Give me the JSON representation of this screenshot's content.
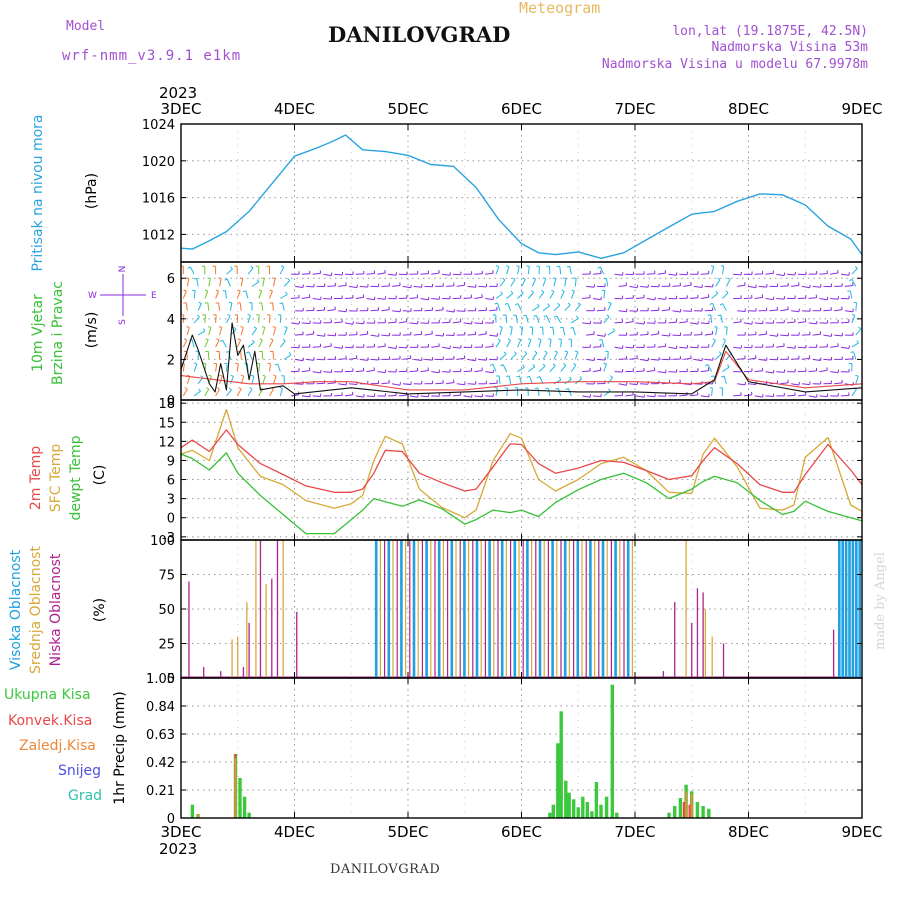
{
  "header": {
    "model_label": "Model",
    "model_name": "wrf-nmm_v3.9.1 e1km",
    "location_title": "DANILOVGRAD",
    "product": "Meteogram",
    "coords": "lon,lat (19.1875E, 42.5N)",
    "elevation": "Nadmorska Visina 53m",
    "model_elevation": "Nadmorska Visina u modelu 67.9978m",
    "watermark": "made by Angel",
    "footer_title": "DANILOVGRAD"
  },
  "time_axis": {
    "year": "2023",
    "labels": [
      "3DEC",
      "4DEC",
      "5DEC",
      "6DEC",
      "7DEC",
      "8DEC",
      "9DEC"
    ],
    "days": [
      0,
      1,
      2,
      3,
      4,
      5,
      6
    ]
  },
  "colors": {
    "pressure": "#29a3e0",
    "temp2m": "#e84848",
    "sfc_temp": "#d8a838",
    "dewpt": "#38c038",
    "high_cloud": "#1fa0e0",
    "mid_cloud": "#d8a838",
    "low_cloud": "#b0208e",
    "wind_line": "#111111",
    "wind_gust": "#e84848",
    "barb_purple": "#8a2be2",
    "barb_cyan": "#20b8e0",
    "barb_green": "#70c830",
    "barb_orange": "#f07830",
    "total_precip": "#3cc83c",
    "conv_precip": "#e84848",
    "frozen_precip": "#f08838",
    "snow": "#5050e0",
    "graupel": "#30c0b0"
  },
  "chart_data": [
    {
      "type": "line",
      "id": "pressure",
      "ylabel": "(hPa)",
      "side_labels": [
        "Pritisak na nivou mora"
      ],
      "ylim": [
        1009,
        1024
      ],
      "yticks": [
        1012,
        1016,
        1020,
        1024
      ],
      "grid": true,
      "series": [
        {
          "x": [
            0,
            0.1,
            0.25,
            0.4,
            0.6,
            0.8,
            1.0,
            1.2,
            1.35,
            1.45,
            1.6,
            1.8,
            2.0,
            2.2,
            2.4,
            2.6,
            2.8,
            3.0,
            3.15,
            3.3,
            3.5,
            3.7,
            3.9,
            4.1,
            4.3,
            4.5,
            4.7,
            4.9,
            5.1,
            5.3,
            5.5,
            5.7,
            5.9,
            6.0
          ],
          "y": [
            1010.5,
            1010.4,
            1011.3,
            1012.3,
            1014.5,
            1017.5,
            1020.5,
            1021.4,
            1022.2,
            1022.8,
            1021.2,
            1021,
            1020.6,
            1019.6,
            1019.4,
            1017.1,
            1013.6,
            1011,
            1010.0,
            1009.8,
            1010.1,
            1009.4,
            1010.0,
            1011.4,
            1012.8,
            1014.2,
            1014.5,
            1015.6,
            1016.4,
            1016.3,
            1015.2,
            1012.9,
            1011.5,
            1009.8
          ]
        }
      ]
    },
    {
      "type": "line",
      "id": "wind",
      "ylabel": "(m/s)",
      "side_labels": [
        "10m Vjetar",
        "Brzina i Pravac"
      ],
      "compass": {
        "n": "N",
        "s": "S",
        "e": "E",
        "w": "W"
      },
      "ylim": [
        0,
        6.8
      ],
      "yticks": [
        0,
        2,
        4,
        6
      ],
      "grid": true,
      "series": [
        {
          "name": "speed",
          "x": [
            0,
            0.1,
            0.15,
            0.25,
            0.3,
            0.35,
            0.4,
            0.45,
            0.5,
            0.55,
            0.6,
            0.65,
            0.7,
            0.8,
            0.9,
            1.0,
            1.5,
            2.0,
            2.5,
            3.0,
            3.5,
            4.0,
            4.5,
            4.7,
            4.8,
            5.0,
            5.5,
            6.0
          ],
          "y": [
            1.5,
            3.2,
            2.5,
            0.8,
            0.4,
            1.8,
            0.5,
            3.8,
            2.2,
            2.7,
            1.0,
            2.4,
            0.5,
            0.6,
            0.7,
            0.3,
            0.6,
            0.3,
            0.4,
            0.5,
            0.4,
            0.4,
            0.3,
            1.0,
            2.7,
            0.9,
            0.4,
            0.6
          ]
        },
        {
          "name": "gust",
          "x": [
            0,
            0.3,
            0.6,
            0.9,
            1.2,
            1.5,
            2.0,
            2.5,
            3.0,
            3.5,
            4.0,
            4.5,
            4.7,
            4.8,
            5.0,
            5.5,
            6.0
          ],
          "y": [
            1.2,
            1.0,
            0.8,
            0.8,
            0.9,
            0.9,
            0.5,
            0.5,
            0.8,
            0.9,
            0.9,
            0.8,
            0.9,
            2.4,
            1.0,
            0.6,
            0.8
          ]
        }
      ]
    },
    {
      "type": "line",
      "id": "temperature",
      "ylabel": "(C)",
      "side_labels": [
        "2m Temp",
        "SFC Temp",
        "dewpt Temp"
      ],
      "ylim": [
        -3.5,
        18.5
      ],
      "yticks": [
        -3,
        0,
        3,
        6,
        9,
        12,
        15,
        18
      ],
      "grid": true,
      "series": [
        {
          "name": "2m Temp",
          "x": [
            0,
            0.1,
            0.25,
            0.4,
            0.5,
            0.7,
            0.9,
            1.1,
            1.35,
            1.5,
            1.6,
            1.7,
            1.8,
            1.95,
            2.1,
            2.3,
            2.5,
            2.6,
            2.75,
            2.9,
            3.0,
            3.15,
            3.3,
            3.5,
            3.7,
            3.9,
            4.1,
            4.3,
            4.5,
            4.6,
            4.7,
            4.9,
            5.1,
            5.3,
            5.4,
            5.5,
            5.7,
            5.9,
            6.0
          ],
          "y": [
            11,
            12.2,
            10.4,
            13.8,
            11.5,
            8.5,
            6.8,
            5,
            4,
            4,
            4.5,
            7,
            10.6,
            10.4,
            7,
            5.5,
            4.2,
            4.5,
            8,
            11.6,
            11.5,
            8.5,
            7,
            7.8,
            9,
            8.7,
            7.4,
            6,
            6.6,
            9,
            11,
            8.5,
            5.2,
            4,
            4,
            6.8,
            11.5,
            7.5,
            5.2
          ]
        },
        {
          "name": "SFC Temp",
          "x": [
            0,
            0.1,
            0.25,
            0.4,
            0.5,
            0.7,
            0.9,
            1.1,
            1.35,
            1.5,
            1.6,
            1.7,
            1.8,
            1.95,
            2.1,
            2.3,
            2.5,
            2.6,
            2.75,
            2.9,
            3.0,
            3.15,
            3.3,
            3.5,
            3.7,
            3.9,
            4.1,
            4.3,
            4.5,
            4.6,
            4.7,
            4.9,
            5.1,
            5.3,
            5.4,
            5.5,
            5.7,
            5.9,
            6.0
          ],
          "y": [
            10,
            10.6,
            9,
            17,
            11,
            6.5,
            5.2,
            2.7,
            1.5,
            2.2,
            3.5,
            9,
            12.8,
            11.6,
            4.5,
            1.6,
            0,
            1.2,
            9,
            13.2,
            12.5,
            6,
            4.2,
            6,
            8.5,
            9.5,
            7.4,
            4,
            3.8,
            10,
            12.5,
            8,
            1.5,
            1.2,
            2,
            9.5,
            12.6,
            2,
            1
          ]
        },
        {
          "name": "dewpt Temp",
          "x": [
            0,
            0.1,
            0.25,
            0.4,
            0.5,
            0.7,
            0.9,
            1.1,
            1.35,
            1.5,
            1.6,
            1.7,
            1.8,
            1.95,
            2.1,
            2.3,
            2.5,
            2.6,
            2.75,
            2.9,
            3.0,
            3.15,
            3.3,
            3.5,
            3.7,
            3.9,
            4.1,
            4.3,
            4.5,
            4.6,
            4.7,
            4.9,
            5.1,
            5.3,
            5.4,
            5.5,
            5.7,
            5.9,
            6.0
          ],
          "y": [
            10,
            9.3,
            7.5,
            10.2,
            7,
            3.5,
            0.5,
            -2.5,
            -2.5,
            -0.3,
            1.2,
            3,
            2.5,
            1.8,
            2.8,
            1.4,
            -1,
            -0.3,
            1.2,
            0.8,
            1.2,
            0.2,
            2.4,
            4.4,
            6,
            7,
            5.5,
            3,
            4.5,
            5.7,
            6.5,
            5.5,
            2.7,
            0.5,
            1,
            2.6,
            1,
            0,
            -0.5
          ]
        }
      ]
    },
    {
      "type": "bar",
      "id": "clouds",
      "ylabel": "(%)",
      "side_labels": [
        "Visoka Oblacnost",
        "Srednja Oblacnost",
        "Niska Oblacnost"
      ],
      "ylim": [
        0,
        100
      ],
      "yticks": [
        0,
        25,
        50,
        75,
        100
      ],
      "grid": true,
      "series": [
        {
          "name": "low",
          "x": [
            0.07,
            0.2,
            0.35,
            0.55,
            0.6,
            0.7,
            0.8,
            0.85,
            1.02,
            4.25,
            4.35,
            4.5,
            4.55,
            4.6,
            4.78,
            5.75
          ],
          "y": [
            70,
            8,
            5,
            8,
            40,
            100,
            72,
            100,
            48,
            5,
            55,
            40,
            65,
            62,
            25,
            35
          ]
        },
        {
          "name": "mid",
          "x": [
            0.45,
            0.5,
            0.58,
            0.66,
            0.75,
            0.9,
            4.45,
            4.62,
            4.68
          ],
          "y": [
            28,
            30,
            55,
            100,
            68,
            100,
            100,
            50,
            30
          ]
        },
        {
          "name": "high",
          "x": [
            5.8,
            5.83,
            5.86,
            5.89,
            5.92,
            5.95,
            5.98
          ],
          "y": [
            100,
            100,
            100,
            100,
            100,
            100,
            100
          ]
        },
        {
          "name": "dense_block",
          "x_start": 1.72,
          "x_end": 3.98,
          "value": 100
        }
      ]
    },
    {
      "type": "bar",
      "id": "precip",
      "ylabel": "1hr Precip (mm)",
      "legend_labels": [
        "Ukupna Kisa",
        "Konvek.Kisa",
        "Zaledj.Kisa",
        "Snijeg",
        "Grad"
      ],
      "ylim": [
        0,
        1.05
      ],
      "yticks": [
        0,
        0.21,
        0.42,
        0.63,
        0.84,
        1.05
      ],
      "ytick_labels": [
        "0",
        "0.21",
        "0.42",
        "0.63",
        "0.84",
        "1.05"
      ],
      "grid": true,
      "series": [
        {
          "name": "Ukupna Kisa",
          "x": [
            0.1,
            0.15,
            0.48,
            0.52,
            0.56,
            0.6,
            3.25,
            3.28,
            3.32,
            3.35,
            3.39,
            3.42,
            3.46,
            3.5,
            3.54,
            3.58,
            3.62,
            3.66,
            3.7,
            3.75,
            3.8,
            3.84,
            4.3,
            4.35,
            4.4,
            4.45,
            4.5,
            4.55,
            4.6,
            4.65
          ],
          "y": [
            0.1,
            0.03,
            0.48,
            0.3,
            0.16,
            0.04,
            0.04,
            0.1,
            0.56,
            0.8,
            0.28,
            0.19,
            0.14,
            0.08,
            0.16,
            0.12,
            0.05,
            0.27,
            0.1,
            0.16,
            1.0,
            0.04,
            0.04,
            0.09,
            0.15,
            0.25,
            0.2,
            0.12,
            0.09,
            0.07
          ]
        },
        {
          "name": "Konvek.Kisa",
          "x": [
            0.48,
            4.43,
            4.48
          ],
          "y": [
            0.48,
            0.12,
            0.1
          ]
        },
        {
          "name": "Zaledj.Kisa",
          "x": [
            0.15,
            0.48,
            4.45,
            4.5
          ],
          "y": [
            0.03,
            0.45,
            0.2,
            0.18
          ]
        }
      ]
    }
  ]
}
